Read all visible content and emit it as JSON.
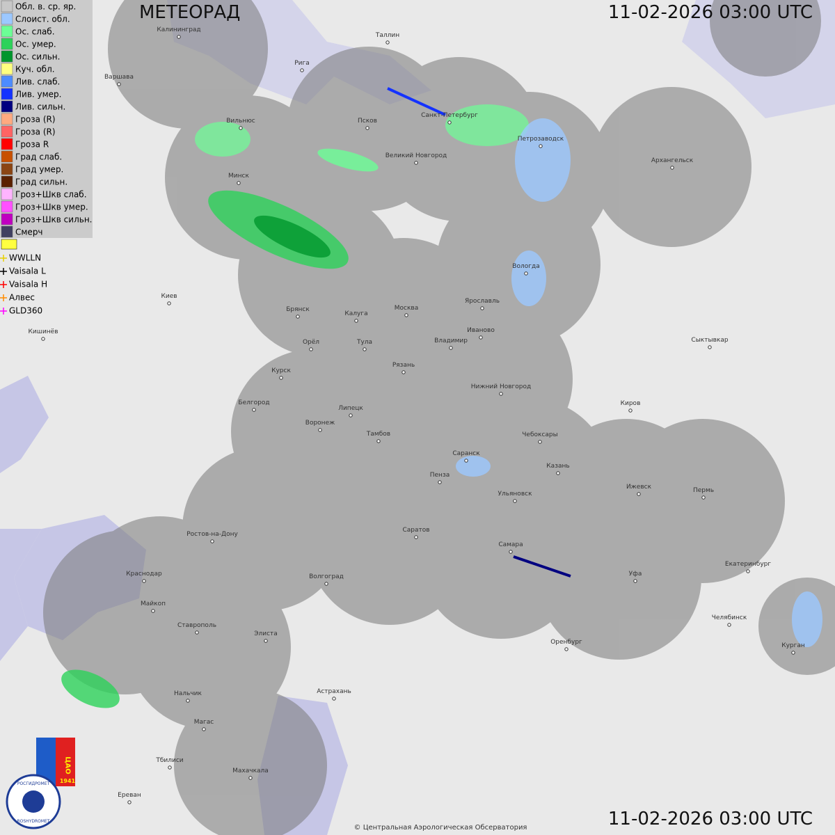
{
  "header": {
    "title": "МЕТЕОРАД",
    "timestamp": "11-02-2026  03:00 UTC"
  },
  "footer": {
    "timestamp": "11-02-2026  03:00 UTC",
    "copyright": "© Центральная Аэрологическая Обсерватория"
  },
  "legend": {
    "items": [
      {
        "label": "Обл. в. ср. яр.",
        "color": "#c8c8c8"
      },
      {
        "label": "Слоист. обл.",
        "color": "#9cc8ff"
      },
      {
        "label": "Ос. слаб.",
        "color": "#6cff96"
      },
      {
        "label": "Ос. умер.",
        "color": "#2dd25a"
      },
      {
        "label": "Ос. сильн.",
        "color": "#00962d"
      },
      {
        "label": "Куч. обл.",
        "color": "#ffff80"
      },
      {
        "label": "Лив. слаб.",
        "color": "#4d8cff"
      },
      {
        "label": "Лив. умер.",
        "color": "#1432ff"
      },
      {
        "label": "Лив. сильн.",
        "color": "#000080"
      },
      {
        "label": "Гроза (R)",
        "color": "#ffaa80"
      },
      {
        "label": "Гроза (R)",
        "color": "#ff6464"
      },
      {
        "label": "Гроза R",
        "color": "#ff0000"
      },
      {
        "label": "Град слаб.",
        "color": "#c85000"
      },
      {
        "label": "Град умер.",
        "color": "#8b4513"
      },
      {
        "label": "Град сильн.",
        "color": "#5a2000"
      },
      {
        "label": "Гроз+Шкв слаб.",
        "color": "#ffb4ff"
      },
      {
        "label": "Гроз+Шкв умер.",
        "color": "#ff50ff"
      },
      {
        "label": "Гроз+Шкв сильн.",
        "color": "#c000c0"
      },
      {
        "label": "Смерч",
        "color": "#404060"
      }
    ],
    "lightning": [
      {
        "label": "WWLLN",
        "color": "#e8d000"
      },
      {
        "label": "Vaisala L",
        "color": "#000000"
      },
      {
        "label": "Vaisala H",
        "color": "#ff0000"
      },
      {
        "label": "Алвес",
        "color": "#ff8c00"
      },
      {
        "label": "GLD360",
        "color": "#ff00ff"
      }
    ]
  },
  "cities": [
    "Калининград",
    "Таллин",
    "Рига",
    "Варшава",
    "Вильнюс",
    "Псков",
    "Санкт-Петербург",
    "Петрозаводск",
    "Архангельск",
    "Великий Новгород",
    "Минск",
    "Вологда",
    "Киев",
    "Брянск",
    "Калуга",
    "Москва",
    "Ярославль",
    "Иваново",
    "Кишинёв",
    "Орёл",
    "Тула",
    "Владимир",
    "Сыктывкар",
    "Рязань",
    "Курск",
    "Нижний Новгород",
    "Белгород",
    "Липецк",
    "Киров",
    "Воронеж",
    "Тамбов",
    "Чебоксары",
    "Саранск",
    "Пенза",
    "Казань",
    "Ижевск",
    "Пермь",
    "Ульяновск",
    "Ростов-на-Дону",
    "Саратов",
    "Самара",
    "Екатеринбург",
    "Краснодар",
    "Волгоград",
    "Уфа",
    "Майкоп",
    "Челябинск",
    "Ставрополь",
    "Элиста",
    "Оренбург",
    "Курган",
    "Астрахань",
    "Нальчик",
    "Магас",
    "Тбилиси",
    "Махачкала",
    "Ереван"
  ],
  "logo": {
    "name_ru": "РОСГИДРОМЕТ",
    "name_en": "ROSHYDROMET",
    "org": "ЦАО",
    "year": "1941"
  }
}
